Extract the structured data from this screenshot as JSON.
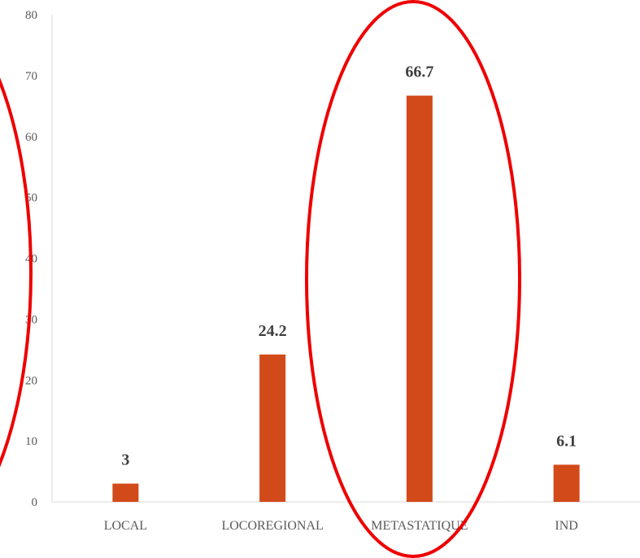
{
  "chart_data": {
    "type": "bar",
    "categories": [
      "LOCAL",
      "LOCOREGIONAL",
      "METASTATIQUE",
      "IND"
    ],
    "values": [
      3,
      24.2,
      66.7,
      6.1
    ],
    "data_labels": [
      "3",
      "24.2",
      "66.7",
      "6.1"
    ],
    "ylim": [
      0,
      80
    ],
    "yticks": [
      "0",
      "10",
      "20",
      "30",
      "40",
      "50",
      "60",
      "70",
      "80"
    ],
    "grid": false,
    "bar_color": "#d24a19",
    "annotation_color": "#ee0000",
    "annotations": [
      "ellipse around y-axis",
      "ellipse around METASTATIQUE bar"
    ]
  }
}
